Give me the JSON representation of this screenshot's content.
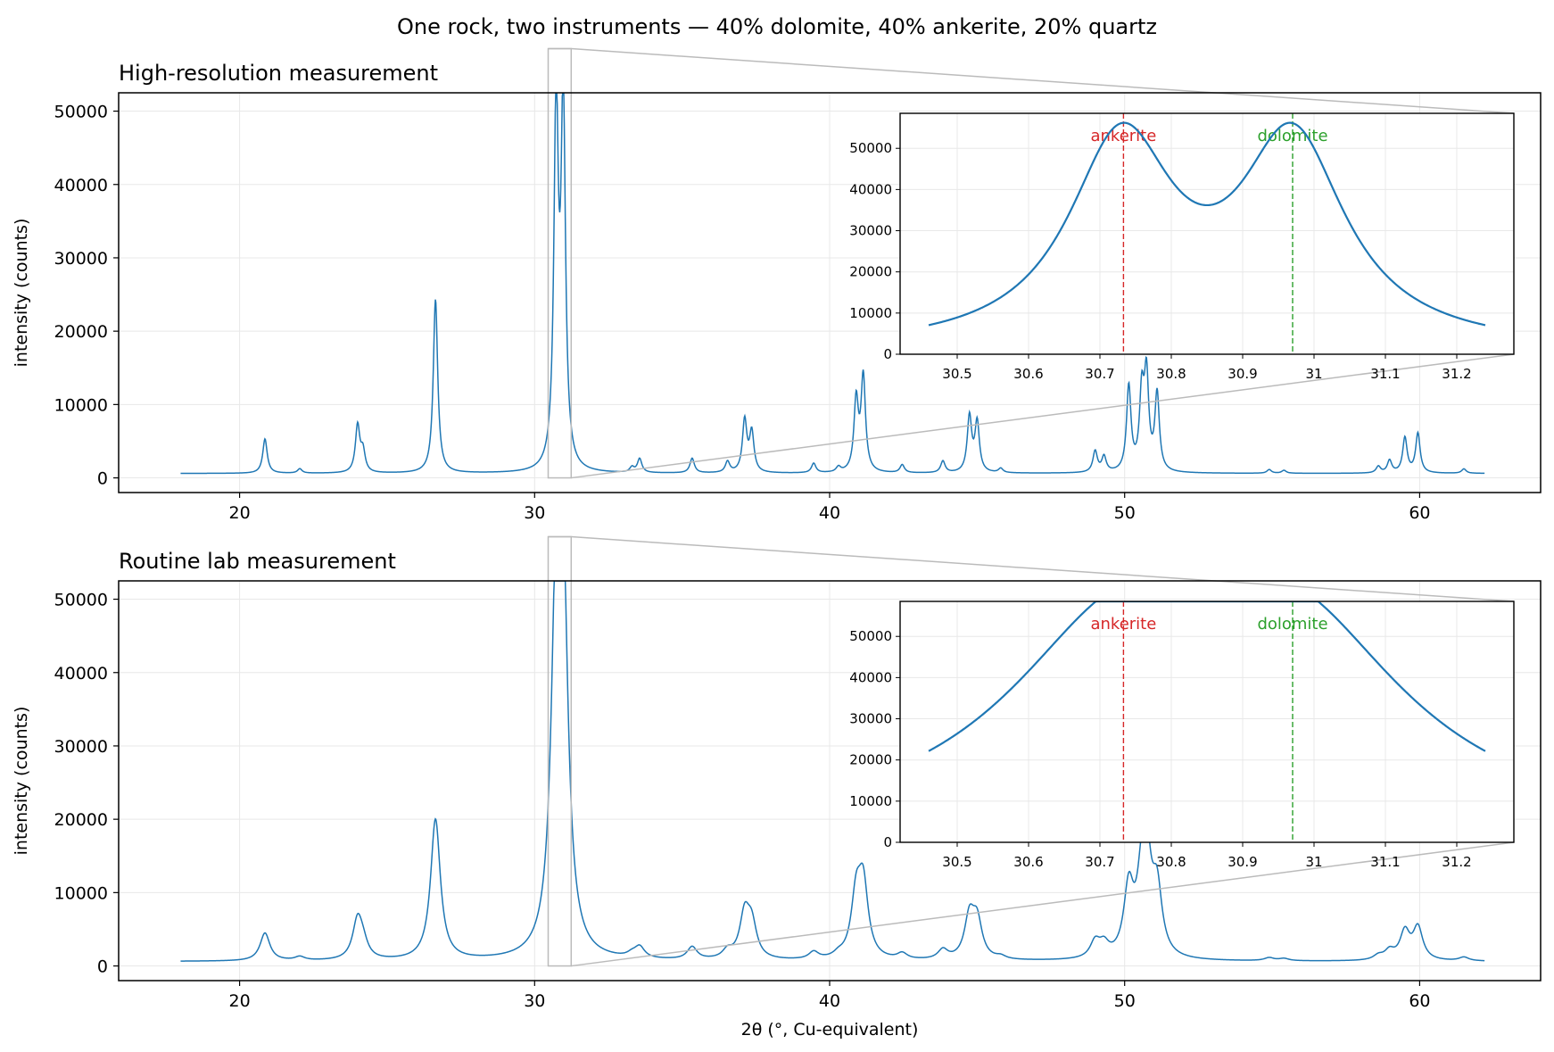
{
  "figure": {
    "suptitle": "One rock, two instruments — 40% dolomite, 40% ankerite, 20% quartz",
    "xlabel": "2θ (°, Cu-equivalent)",
    "colors": {
      "line": "#1f77b4",
      "ankerite": "#d62728",
      "dolomite": "#2ca02c",
      "zoom": "#bbbbbb",
      "grid": "#e8e8e8"
    }
  },
  "chart_data": [
    {
      "type": "line",
      "title": "High-resolution measurement",
      "xlabel": "",
      "ylabel": "intensity (counts)",
      "xlim": [
        15.9,
        64.1
      ],
      "ylim": [
        -2000,
        52500
      ],
      "xticks": [
        20,
        30,
        40,
        50,
        60
      ],
      "yticks": [
        0,
        10000,
        20000,
        30000,
        40000,
        50000
      ],
      "grid": true,
      "background": 600,
      "peak_width": 0.09,
      "peaks": [
        {
          "x": 20.86,
          "y": 4700
        },
        {
          "x": 22.04,
          "y": 600
        },
        {
          "x": 24.0,
          "y": 6400
        },
        {
          "x": 24.18,
          "y": 2800
        },
        {
          "x": 26.64,
          "y": 23700
        },
        {
          "x": 30.73,
          "y": 49400
        },
        {
          "x": 30.97,
          "y": 49400
        },
        {
          "x": 33.3,
          "y": 700
        },
        {
          "x": 33.56,
          "y": 1900
        },
        {
          "x": 35.34,
          "y": 2000
        },
        {
          "x": 36.54,
          "y": 1500
        },
        {
          "x": 37.12,
          "y": 7100
        },
        {
          "x": 37.36,
          "y": 5400
        },
        {
          "x": 39.46,
          "y": 1300
        },
        {
          "x": 40.3,
          "y": 700
        },
        {
          "x": 40.9,
          "y": 9700
        },
        {
          "x": 41.14,
          "y": 12900
        },
        {
          "x": 42.46,
          "y": 1100
        },
        {
          "x": 43.84,
          "y": 1600
        },
        {
          "x": 44.74,
          "y": 7600
        },
        {
          "x": 45.0,
          "y": 6800
        },
        {
          "x": 45.8,
          "y": 600
        },
        {
          "x": 49.0,
          "y": 2900
        },
        {
          "x": 49.3,
          "y": 2100
        },
        {
          "x": 50.14,
          "y": 11600
        },
        {
          "x": 50.58,
          "y": 10100
        },
        {
          "x": 50.74,
          "y": 12500
        },
        {
          "x": 51.1,
          "y": 10500
        },
        {
          "x": 54.9,
          "y": 500
        },
        {
          "x": 55.4,
          "y": 400
        },
        {
          "x": 58.6,
          "y": 900
        },
        {
          "x": 58.98,
          "y": 1700
        },
        {
          "x": 59.5,
          "y": 4800
        },
        {
          "x": 59.94,
          "y": 5400
        },
        {
          "x": 61.5,
          "y": 600
        }
      ],
      "x_range": [
        18,
        62.2
      ],
      "zoom_box": {
        "xlim": [
          30.46,
          31.24
        ],
        "ylim": [
          0,
          50000
        ]
      },
      "inset": {
        "xlim": [
          30.42,
          31.28
        ],
        "ylim": [
          0,
          58500
        ],
        "xticks": [
          30.5,
          30.6,
          30.7,
          30.8,
          30.9,
          31.0,
          31.1,
          31.2
        ],
        "yticks": [
          0,
          10000,
          20000,
          30000,
          40000,
          50000
        ],
        "x_range": [
          30.46,
          31.24
        ],
        "markers": [
          {
            "label": "ankerite",
            "x": 30.733
          },
          {
            "label": "dolomite",
            "x": 30.97
          }
        ]
      }
    },
    {
      "type": "line",
      "title": "Routine lab measurement",
      "xlabel": "2θ (°, Cu-equivalent)",
      "ylabel": "intensity (counts)",
      "xlim": [
        15.9,
        64.1
      ],
      "ylim": [
        -2000,
        52500
      ],
      "xticks": [
        20,
        30,
        40,
        50,
        60
      ],
      "yticks": [
        0,
        10000,
        20000,
        30000,
        40000,
        50000
      ],
      "grid": true,
      "background": 600,
      "peak_width": 0.2,
      "peaks": [
        {
          "x": 20.86,
          "y": 3800
        },
        {
          "x": 22.04,
          "y": 500
        },
        {
          "x": 24.0,
          "y": 5300
        },
        {
          "x": 24.18,
          "y": 1800
        },
        {
          "x": 26.64,
          "y": 19200
        },
        {
          "x": 30.73,
          "y": 44000
        },
        {
          "x": 30.97,
          "y": 44000
        },
        {
          "x": 33.3,
          "y": 500
        },
        {
          "x": 33.56,
          "y": 1500
        },
        {
          "x": 35.34,
          "y": 1700
        },
        {
          "x": 36.54,
          "y": 1100
        },
        {
          "x": 37.12,
          "y": 5900
        },
        {
          "x": 37.36,
          "y": 4400
        },
        {
          "x": 39.46,
          "y": 1000
        },
        {
          "x": 40.3,
          "y": 500
        },
        {
          "x": 40.9,
          "y": 8000
        },
        {
          "x": 41.14,
          "y": 9600
        },
        {
          "x": 42.46,
          "y": 800
        },
        {
          "x": 43.84,
          "y": 1300
        },
        {
          "x": 44.74,
          "y": 5600
        },
        {
          "x": 45.0,
          "y": 5000
        },
        {
          "x": 45.8,
          "y": 400
        },
        {
          "x": 49.0,
          "y": 2200
        },
        {
          "x": 49.3,
          "y": 1700
        },
        {
          "x": 50.14,
          "y": 9100
        },
        {
          "x": 50.58,
          "y": 7600
        },
        {
          "x": 50.74,
          "y": 12200
        },
        {
          "x": 51.1,
          "y": 8600
        },
        {
          "x": 54.9,
          "y": 400
        },
        {
          "x": 55.4,
          "y": 300
        },
        {
          "x": 58.6,
          "y": 600
        },
        {
          "x": 58.98,
          "y": 1200
        },
        {
          "x": 59.5,
          "y": 3800
        },
        {
          "x": 59.94,
          "y": 4400
        },
        {
          "x": 61.5,
          "y": 500
        }
      ],
      "x_range": [
        18,
        62.2
      ],
      "zoom_box": {
        "xlim": [
          30.46,
          31.24
        ],
        "ylim": [
          0,
          50000
        ]
      },
      "inset": {
        "xlim": [
          30.42,
          31.28
        ],
        "ylim": [
          0,
          58500
        ],
        "xticks": [
          30.5,
          30.6,
          30.7,
          30.8,
          30.9,
          31.0,
          31.1,
          31.2
        ],
        "yticks": [
          0,
          10000,
          20000,
          30000,
          40000,
          50000
        ],
        "x_range": [
          30.46,
          31.24
        ],
        "markers": [
          {
            "label": "ankerite",
            "x": 30.733
          },
          {
            "label": "dolomite",
            "x": 30.97
          }
        ]
      }
    }
  ]
}
